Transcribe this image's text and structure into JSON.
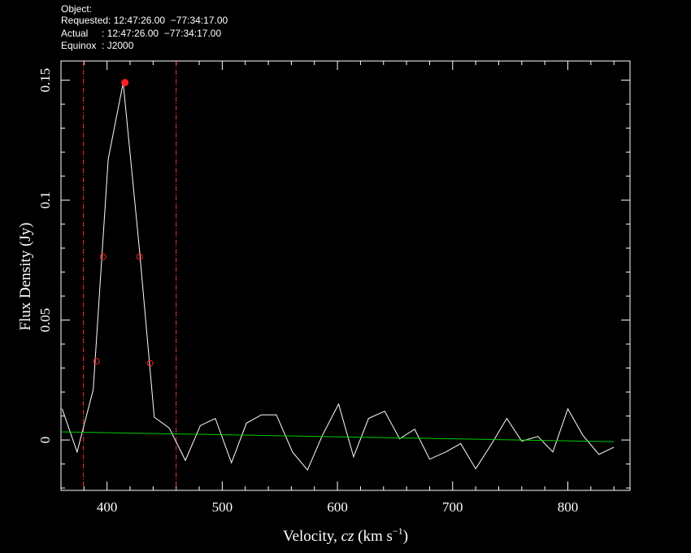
{
  "header": {
    "lines": [
      "Object:",
      "Requested: 12:47:26.00  −77:34:17.00",
      "Actual     : 12:47:26.00  −77:34:17.00",
      "Equinox  : J2000"
    ]
  },
  "chart_data": {
    "type": "line",
    "xlabel": {
      "pre": "Velocity, ",
      "italic": "cz",
      "mid": " (km s",
      "sup": "−1",
      "post": ")"
    },
    "ylabel": "Flux Density (Jy)",
    "xlim": [
      360,
      854
    ],
    "ylim": [
      -0.021,
      0.158
    ],
    "xticks": [
      400,
      500,
      600,
      700,
      800
    ],
    "xminorticks": [
      380,
      420,
      440,
      460,
      480,
      520,
      540,
      560,
      580,
      620,
      640,
      660,
      680,
      720,
      740,
      760,
      780,
      820,
      840
    ],
    "yticks": [
      0,
      0.05,
      0.1,
      0.15
    ],
    "yminorticks": [
      -0.02,
      -0.01,
      0.01,
      0.02,
      0.03,
      0.04,
      0.06,
      0.07,
      0.08,
      0.09,
      0.11,
      0.12,
      0.13,
      0.14
    ],
    "series": [
      {
        "color": "#ffffff",
        "x": [
          361,
          374,
          388,
          401,
          414,
          428,
          441,
          454,
          468,
          481,
          494,
          508,
          521,
          534,
          547,
          561,
          574,
          587,
          601,
          614,
          627,
          641,
          654,
          667,
          680,
          694,
          707,
          720,
          734,
          747,
          760,
          774,
          787,
          800,
          813,
          827,
          840
        ],
        "values": [
          0.013,
          -0.005,
          0.021,
          0.117,
          0.149,
          0.08,
          0.0095,
          0.005,
          -0.0085,
          0.006,
          0.009,
          -0.0095,
          0.007,
          0.0105,
          0.0105,
          -0.005,
          -0.0125,
          0.002,
          0.015,
          -0.007,
          0.009,
          0.012,
          0.0005,
          0.0045,
          -0.008,
          -0.005,
          -0.0015,
          -0.012,
          -0.0015,
          0.009,
          -0.0005,
          0.0015,
          -0.005,
          0.013,
          0.002,
          -0.006,
          -0.003
        ]
      },
      {
        "color": "#00cc00",
        "x": [
          360,
          840
        ],
        "values": [
          0.0034,
          -0.0007
        ]
      }
    ],
    "markers": {
      "color": "#ff2020",
      "x": [
        390.8,
        396.5,
        428.2,
        437.4
      ],
      "values": [
        0.0328,
        0.0764,
        0.0764,
        0.032
      ]
    },
    "peak": {
      "color": "#ff2020",
      "x": 415.5,
      "value": 0.149
    },
    "vlines": {
      "color": "#ff3030",
      "x": [
        379.5,
        460
      ]
    }
  }
}
